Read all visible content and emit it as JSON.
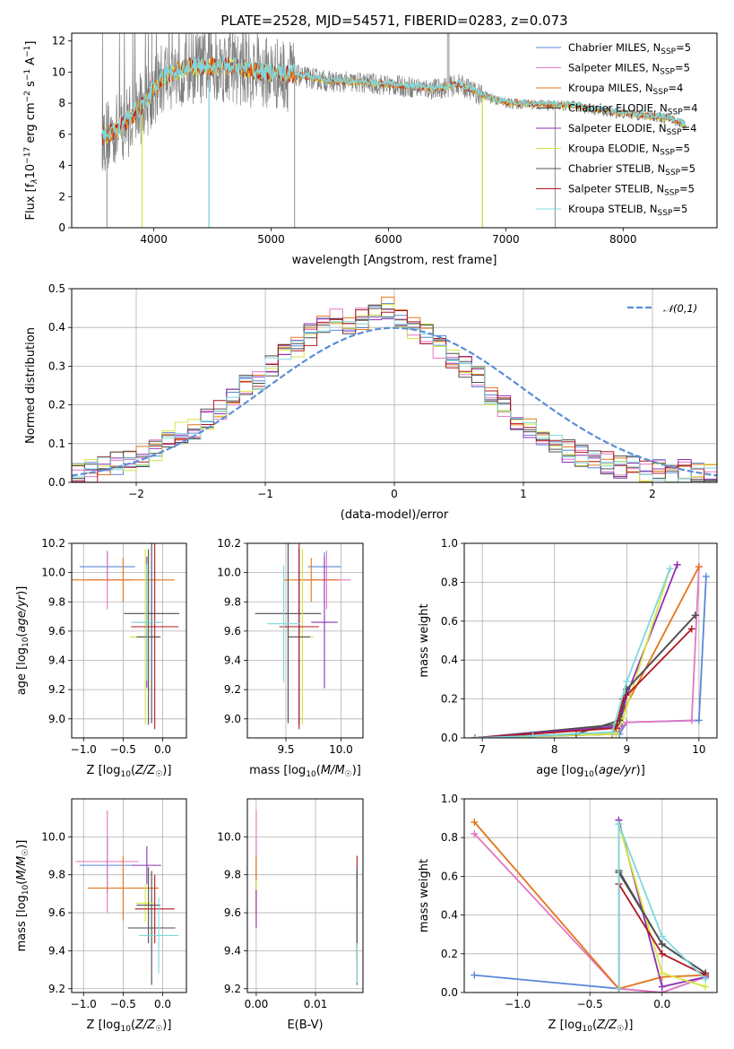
{
  "figure_title": "PLATE=2528, MJD=54571, FIBERID=0283, z=0.073",
  "colors": {
    "chabrier_miles": "#5b86d6",
    "salpeter_miles": "#e377c2",
    "kroupa_miles": "#e2761b",
    "chabrier_elodie": "#4b4b4b",
    "salpeter_elodie": "#8e2fb5",
    "kroupa_elodie": "#d4e640",
    "chabrier_stelib": "#505050",
    "salpeter_stelib": "#b0171f",
    "kroupa_stelib": "#7fd8dd",
    "data": "#7f7f7f",
    "grid": "#b0b0b0",
    "normal": "#5b8ed6"
  },
  "chart_data": [
    {
      "type": "line",
      "id": "spectrum",
      "title": "PLATE=2528, MJD=54571, FIBERID=0283, z=0.073",
      "xlabel": "wavelength [Angstrom, rest frame]",
      "ylabel_main": "Flux [f",
      "ylabel_sub": "λ",
      "ylabel_rest": "10",
      "ylabel_exp1": "−17",
      "ylabel_mid": " erg cm",
      "ylabel_exp2": "−2",
      "ylabel_mid2": " s",
      "ylabel_exp3": "−1",
      "ylabel_mid3": " A",
      "ylabel_exp4": "−1",
      "ylabel_end": "]",
      "xlim": [
        3300,
        8800
      ],
      "ylim": [
        0,
        12.5
      ],
      "xticks": [
        4000,
        5000,
        6000,
        7000,
        8000
      ],
      "yticks": [
        0,
        2,
        4,
        6,
        8,
        10,
        12
      ],
      "data_range": [
        3560,
        8530
      ],
      "continuum_x": [
        3560,
        3700,
        3900,
        4100,
        4300,
        4600,
        4900,
        5200,
        5500,
        5800,
        6100,
        6400,
        6600,
        6800,
        7000,
        7300,
        7600,
        7900,
        8200,
        8400,
        8530
      ],
      "continuum_y": [
        5.8,
        6.3,
        7.8,
        9.8,
        10.3,
        10.4,
        10.0,
        9.8,
        9.4,
        9.3,
        9.1,
        8.9,
        9.2,
        8.5,
        8.0,
        7.9,
        7.8,
        7.4,
        7.2,
        7.0,
        6.6
      ],
      "spikes_down_x": [
        3600,
        3900,
        4470,
        5200,
        6800,
        7420
      ],
      "legend": [
        {
          "label": "Chabrier MILES, N",
          "sub": "SSP",
          "suffix": "=5",
          "color_key": "chabrier_miles"
        },
        {
          "label": "Salpeter MILES, N",
          "sub": "SSP",
          "suffix": "=5",
          "color_key": "salpeter_miles"
        },
        {
          "label": "Kroupa MILES, N",
          "sub": "SSP",
          "suffix": "=4",
          "color_key": "kroupa_miles"
        },
        {
          "label": "Chabrier ELODIE, N",
          "sub": "SSP",
          "suffix": "=4",
          "color_key": "chabrier_elodie"
        },
        {
          "label": "Salpeter ELODIE, N",
          "sub": "SSP",
          "suffix": "=4",
          "color_key": "salpeter_elodie"
        },
        {
          "label": "Kroupa ELODIE, N",
          "sub": "SSP",
          "suffix": "=5",
          "color_key": "kroupa_elodie"
        },
        {
          "label": "Chabrier STELIB, N",
          "sub": "SSP",
          "suffix": "=5",
          "color_key": "chabrier_stelib"
        },
        {
          "label": "Salpeter STELIB, N",
          "sub": "SSP",
          "suffix": "=5",
          "color_key": "salpeter_stelib"
        },
        {
          "label": "Kroupa STELIB, N",
          "sub": "SSP",
          "suffix": "=5",
          "color_key": "kroupa_stelib"
        }
      ],
      "legend_position": "top-right"
    },
    {
      "type": "area",
      "id": "residuals",
      "xlabel": "(data-model)/error",
      "ylabel": "Normed distribution",
      "xlim": [
        -2.5,
        2.5
      ],
      "ylim": [
        0,
        0.5
      ],
      "xticks": [
        -2,
        -1,
        0,
        1,
        2
      ],
      "xticklabels": [
        "−2",
        "−1",
        "0",
        "1",
        "2"
      ],
      "yticks": [
        0.0,
        0.1,
        0.2,
        0.3,
        0.4,
        0.5
      ],
      "yticklabels": [
        "0.0",
        "0.1",
        "0.2",
        "0.3",
        "0.4",
        "0.5"
      ],
      "bin_width": 0.1,
      "histogram_center_bins": [
        0.02,
        0.03,
        0.04,
        0.05,
        0.06,
        0.07,
        0.08,
        0.11,
        0.13,
        0.14,
        0.16,
        0.19,
        0.22,
        0.25,
        0.27,
        0.3,
        0.33,
        0.35,
        0.38,
        0.4,
        0.42,
        0.41,
        0.42,
        0.43,
        0.45,
        0.42,
        0.4,
        0.38,
        0.35,
        0.32,
        0.3,
        0.27,
        0.23,
        0.2,
        0.16,
        0.14,
        0.12,
        0.1,
        0.08,
        0.07,
        0.06,
        0.05,
        0.04,
        0.04,
        0.03,
        0.03,
        0.02,
        0.03,
        0.02,
        0.02
      ],
      "normal_label": "𝒩(0,1)",
      "legend_position": "top-right"
    },
    {
      "type": "scatter",
      "id": "Z_age",
      "xlabel": "Z [log10(Z/Z☉)]",
      "ylabel": "age  [log10(age/yr)]",
      "xlim": [
        -1.15,
        0.3
      ],
      "ylim": [
        8.87,
        10.2
      ],
      "xticks": [
        -1.0,
        -0.5,
        0.0
      ],
      "xticklabels": [
        "−1.0",
        "−0.5",
        "0.0"
      ],
      "yticks": [
        9.0,
        9.2,
        9.4,
        9.6,
        9.8,
        10.0,
        10.2
      ],
      "yticklabels": [
        "9.0",
        "9.2",
        "9.4",
        "9.6",
        "9.8",
        "10.0",
        "10.2"
      ],
      "points": [
        {
          "x": -0.7,
          "y": 10.04,
          "xerr": 0.35,
          "yerr": 0.1,
          "color_key": "chabrier_miles"
        },
        {
          "x": -0.7,
          "y": 9.95,
          "xerr": 0.3,
          "yerr": 0.2,
          "color_key": "salpeter_miles"
        },
        {
          "x": -0.5,
          "y": 9.95,
          "xerr": 0.65,
          "yerr": 0.15,
          "color_key": "kroupa_miles"
        },
        {
          "x": -0.14,
          "y": 9.72,
          "xerr": 0.35,
          "yerr": 0.75,
          "color_key": "chabrier_elodie"
        },
        {
          "x": -0.2,
          "y": 9.66,
          "xerr": 0.18,
          "yerr": 0.45,
          "color_key": "salpeter_elodie"
        },
        {
          "x": -0.22,
          "y": 9.56,
          "xerr": 0.2,
          "yerr": 0.6,
          "color_key": "kroupa_elodie"
        },
        {
          "x": -0.18,
          "y": 9.56,
          "xerr": 0.15,
          "yerr": 0.6,
          "color_key": "chabrier_stelib"
        },
        {
          "x": -0.1,
          "y": 9.63,
          "xerr": 0.3,
          "yerr": 0.7,
          "color_key": "salpeter_stelib"
        },
        {
          "x": -0.2,
          "y": 9.66,
          "xerr": 0.2,
          "yerr": 0.4,
          "color_key": "kroupa_stelib"
        }
      ]
    },
    {
      "type": "scatter",
      "id": "mass_age",
      "xlabel": "mass [log10(M/M☉)]",
      "xlim": [
        9.15,
        10.2
      ],
      "ylim": [
        8.87,
        10.2
      ],
      "xticks": [
        9.5,
        10.0
      ],
      "xticklabels": [
        "9.5",
        "10.0"
      ],
      "yticks": [
        9.0,
        9.2,
        9.4,
        9.6,
        9.8,
        10.0,
        10.2
      ],
      "yticklabels": [
        "9.0",
        "9.2",
        "9.4",
        "9.6",
        "9.8",
        "10.0",
        "10.2"
      ],
      "points": [
        {
          "x": 9.85,
          "y": 10.04,
          "xerr": 0.15,
          "yerr": 0.1,
          "color_key": "chabrier_miles"
        },
        {
          "x": 9.87,
          "y": 9.95,
          "xerr": 0.22,
          "yerr": 0.2,
          "color_key": "salpeter_miles"
        },
        {
          "x": 9.73,
          "y": 9.95,
          "xerr": 0.25,
          "yerr": 0.15,
          "color_key": "kroupa_miles"
        },
        {
          "x": 9.52,
          "y": 9.72,
          "xerr": 0.3,
          "yerr": 0.75,
          "color_key": "chabrier_elodie"
        },
        {
          "x": 9.85,
          "y": 9.66,
          "xerr": 0.12,
          "yerr": 0.45,
          "color_key": "salpeter_elodie"
        },
        {
          "x": 9.65,
          "y": 9.56,
          "xerr": 0.1,
          "yerr": 0.6,
          "color_key": "kroupa_elodie"
        },
        {
          "x": 9.62,
          "y": 9.56,
          "xerr": 0.1,
          "yerr": 0.6,
          "color_key": "chabrier_stelib"
        },
        {
          "x": 9.62,
          "y": 9.63,
          "xerr": 0.18,
          "yerr": 0.7,
          "color_key": "salpeter_stelib"
        },
        {
          "x": 9.48,
          "y": 9.65,
          "xerr": 0.15,
          "yerr": 0.4,
          "color_key": "kroupa_stelib"
        }
      ]
    },
    {
      "type": "line",
      "id": "age_weight",
      "xlabel": "age  [log10(age/yr)]",
      "ylabel": "mass weight",
      "xlim": [
        6.75,
        10.25
      ],
      "ylim": [
        0,
        1.0
      ],
      "xticks": [
        7,
        8,
        9,
        10
      ],
      "xticklabels": [
        "7",
        "8",
        "9",
        "10"
      ],
      "yticks": [
        0.0,
        0.2,
        0.4,
        0.6,
        0.8,
        1.0
      ],
      "yticklabels": [
        "0.0",
        "0.2",
        "0.4",
        "0.6",
        "0.8",
        "1.0"
      ],
      "series": [
        {
          "color_key": "chabrier_miles",
          "x": [
            6.9,
            8.9,
            9.0,
            10.0,
            10.1
          ],
          "y": [
            0.0,
            0.02,
            0.08,
            0.09,
            0.83
          ]
        },
        {
          "color_key": "salpeter_miles",
          "x": [
            6.9,
            8.85,
            9.0,
            9.9,
            10.0
          ],
          "y": [
            0.0,
            0.02,
            0.08,
            0.09,
            0.88
          ]
        },
        {
          "color_key": "kroupa_miles",
          "x": [
            6.9,
            8.8,
            8.9,
            10.0
          ],
          "y": [
            0.0,
            0.02,
            0.1,
            0.88
          ]
        },
        {
          "color_key": "chabrier_elodie",
          "x": [
            6.9,
            8.9,
            9.0,
            9.95
          ],
          "y": [
            0.0,
            0.07,
            0.25,
            0.63
          ]
        },
        {
          "color_key": "salpeter_elodie",
          "x": [
            6.9,
            8.9,
            9.0,
            9.7
          ],
          "y": [
            0.0,
            0.06,
            0.22,
            0.89
          ]
        },
        {
          "color_key": "kroupa_elodie",
          "x": [
            6.9,
            8.85,
            8.95,
            9.6
          ],
          "y": [
            0.0,
            0.02,
            0.1,
            0.87
          ]
        },
        {
          "color_key": "chabrier_stelib",
          "x": [
            6.9,
            8.3,
            8.9,
            9.0,
            9.95
          ],
          "y": [
            0.0,
            0.02,
            0.09,
            0.25,
            0.63
          ]
        },
        {
          "color_key": "salpeter_stelib",
          "x": [
            6.9,
            8.85,
            8.95,
            9.9
          ],
          "y": [
            0.0,
            0.05,
            0.2,
            0.56
          ]
        },
        {
          "color_key": "kroupa_stelib",
          "x": [
            6.9,
            7.7,
            8.8,
            9.0,
            9.6
          ],
          "y": [
            0.0,
            0.01,
            0.03,
            0.29,
            0.87
          ]
        }
      ]
    },
    {
      "type": "scatter",
      "id": "Z_mass",
      "xlabel": "Z [log10(Z/Z☉)]",
      "ylabel": "mass [log10(M/M☉)]",
      "xlim": [
        -1.15,
        0.3
      ],
      "ylim": [
        9.18,
        10.2
      ],
      "xticks": [
        -1.0,
        -0.5,
        0.0
      ],
      "xticklabels": [
        "−1.0",
        "−0.5",
        "0.0"
      ],
      "yticks": [
        9.2,
        9.4,
        9.6,
        9.8,
        10.0
      ],
      "yticklabels": [
        "9.2",
        "9.4",
        "9.6",
        "9.8",
        "10.0"
      ],
      "points": [
        {
          "x": -0.7,
          "y": 9.85,
          "xerr": 0.35,
          "yerr": 0.15,
          "color_key": "chabrier_miles"
        },
        {
          "x": -0.7,
          "y": 9.87,
          "xerr": 0.4,
          "yerr": 0.27,
          "color_key": "salpeter_miles"
        },
        {
          "x": -0.5,
          "y": 9.73,
          "xerr": 0.45,
          "yerr": 0.17,
          "color_key": "kroupa_miles"
        },
        {
          "x": -0.14,
          "y": 9.52,
          "xerr": 0.3,
          "yerr": 0.3,
          "color_key": "chabrier_elodie"
        },
        {
          "x": -0.2,
          "y": 9.85,
          "xerr": 0.18,
          "yerr": 0.1,
          "color_key": "salpeter_elodie"
        },
        {
          "x": -0.22,
          "y": 9.65,
          "xerr": 0.12,
          "yerr": 0.1,
          "color_key": "kroupa_elodie"
        },
        {
          "x": -0.18,
          "y": 9.64,
          "xerr": 0.15,
          "yerr": 0.2,
          "color_key": "chabrier_stelib"
        },
        {
          "x": -0.1,
          "y": 9.62,
          "xerr": 0.25,
          "yerr": 0.18,
          "color_key": "salpeter_stelib"
        },
        {
          "x": -0.05,
          "y": 9.48,
          "xerr": 0.25,
          "yerr": 0.2,
          "color_key": "kroupa_stelib"
        }
      ]
    },
    {
      "type": "scatter",
      "id": "ebv_mass",
      "xlabel": "E(B-V)",
      "xlim": [
        -0.0015,
        0.018
      ],
      "ylim": [
        9.18,
        10.2
      ],
      "xticks": [
        0.0,
        0.01
      ],
      "xticklabels": [
        "0.00",
        "0.01"
      ],
      "yticks": [
        9.2,
        9.4,
        9.6,
        9.8,
        10.0
      ],
      "yticklabels": [
        "9.2",
        "9.4",
        "9.6",
        "9.8",
        "10.0"
      ],
      "points": [
        {
          "x": 0.0,
          "y": 9.85,
          "xerr": 0,
          "yerr": 0.15,
          "color_key": "chabrier_miles"
        },
        {
          "x": 0.0,
          "y": 9.87,
          "xerr": 0,
          "yerr": 0.27,
          "color_key": "salpeter_miles"
        },
        {
          "x": 0.0,
          "y": 9.73,
          "xerr": 0,
          "yerr": 0.17,
          "color_key": "kroupa_miles"
        },
        {
          "x": 0.0,
          "y": 9.65,
          "xerr": 0,
          "yerr": 0.12,
          "color_key": "kroupa_elodie"
        },
        {
          "x": 0.0,
          "y": 9.62,
          "xerr": 0,
          "yerr": 0.1,
          "color_key": "salpeter_elodie"
        },
        {
          "x": 0.017,
          "y": 9.52,
          "xerr": 0,
          "yerr": 0.3,
          "color_key": "chabrier_elodie"
        },
        {
          "x": 0.017,
          "y": 9.62,
          "xerr": 0,
          "yerr": 0.28,
          "color_key": "salpeter_stelib"
        },
        {
          "x": 0.017,
          "y": 9.48,
          "xerr": 0,
          "yerr": 0.25,
          "color_key": "kroupa_stelib"
        },
        {
          "x": 0.017,
          "y": 9.64,
          "xerr": 0,
          "yerr": 0.2,
          "color_key": "chabrier_stelib"
        }
      ]
    },
    {
      "type": "line",
      "id": "Z_weight",
      "xlabel": "Z [log10(Z/Z☉)]",
      "ylabel": "mass weight",
      "xlim": [
        -1.37,
        0.38
      ],
      "ylim": [
        0,
        1.0
      ],
      "xticks": [
        -1.0,
        -0.5,
        0.0
      ],
      "xticklabels": [
        "−1.0",
        "−0.5",
        "0.0"
      ],
      "yticks": [
        0.0,
        0.2,
        0.4,
        0.6,
        0.8,
        1.0
      ],
      "yticklabels": [
        "0.0",
        "0.2",
        "0.4",
        "0.6",
        "0.8",
        "1.0"
      ],
      "series": [
        {
          "color_key": "chabrier_miles",
          "x": [
            -1.3,
            -0.3,
            0.0,
            0.3
          ],
          "y": [
            0.09,
            0.02,
            0.0,
            0.08
          ]
        },
        {
          "color_key": "salpeter_miles",
          "x": [
            -1.3,
            -0.3,
            0.0,
            0.3
          ],
          "y": [
            0.82,
            0.02,
            0.0,
            0.08
          ]
        },
        {
          "color_key": "kroupa_miles",
          "x": [
            -1.3,
            -0.3,
            0.0,
            0.3
          ],
          "y": [
            0.88,
            0.02,
            0.08,
            0.09
          ]
        },
        {
          "color_key": "chabrier_elodie",
          "x": [
            -0.3,
            -0.3,
            0.0,
            0.3
          ],
          "y": [
            0.02,
            0.62,
            0.25,
            0.1
          ]
        },
        {
          "color_key": "salpeter_elodie",
          "x": [
            -0.3,
            -0.3,
            0.0,
            0.3
          ],
          "y": [
            0.02,
            0.89,
            0.03,
            0.08
          ]
        },
        {
          "color_key": "kroupa_elodie",
          "x": [
            -0.3,
            -0.3,
            0.0,
            0.3
          ],
          "y": [
            0.02,
            0.87,
            0.1,
            0.03
          ]
        },
        {
          "color_key": "chabrier_stelib",
          "x": [
            -0.3,
            -0.3,
            0.0,
            0.3
          ],
          "y": [
            0.02,
            0.63,
            0.25,
            0.1
          ]
        },
        {
          "color_key": "salpeter_stelib",
          "x": [
            -0.3,
            -0.3,
            0.0,
            0.3
          ],
          "y": [
            0.02,
            0.56,
            0.2,
            0.09
          ]
        },
        {
          "color_key": "kroupa_stelib",
          "x": [
            -0.3,
            -0.3,
            0.0,
            0.3
          ],
          "y": [
            0.02,
            0.87,
            0.29,
            0.07
          ]
        }
      ]
    }
  ]
}
